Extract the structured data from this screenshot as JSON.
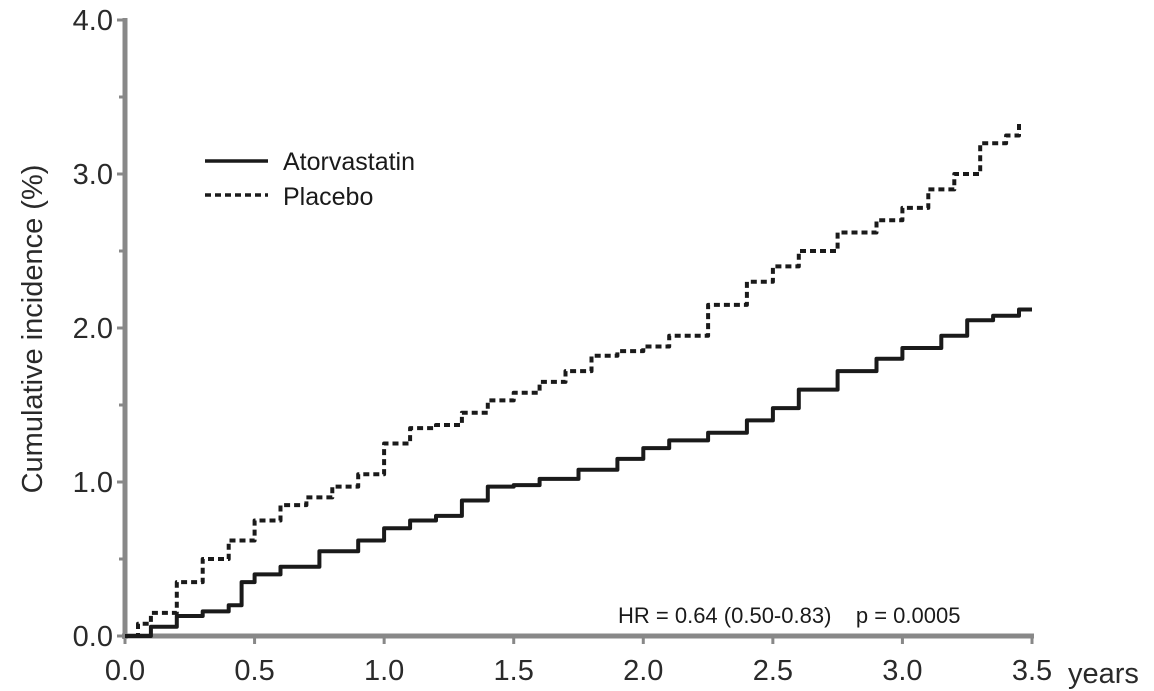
{
  "chart_data": {
    "type": "line",
    "title": "",
    "xlabel": "years",
    "ylabel": "Cumulative incidence (%)",
    "xlim": [
      0,
      3.5
    ],
    "ylim": [
      0,
      4.0
    ],
    "xticks": [
      {
        "value": 0.0,
        "label": "0.0"
      },
      {
        "value": 0.5,
        "label": "0.5"
      },
      {
        "value": 1.0,
        "label": "1.0"
      },
      {
        "value": 1.5,
        "label": "1.5"
      },
      {
        "value": 2.0,
        "label": "2.0"
      },
      {
        "value": 2.5,
        "label": "2.5"
      },
      {
        "value": 3.0,
        "label": "3.0"
      },
      {
        "value": 3.5,
        "label": "3.5"
      }
    ],
    "yticks": [
      {
        "value": 0.0,
        "label": "0.0"
      },
      {
        "value": 1.0,
        "label": "1.0"
      },
      {
        "value": 2.0,
        "label": "2.0"
      },
      {
        "value": 3.0,
        "label": "3.0"
      },
      {
        "value": 4.0,
        "label": "4.0"
      }
    ],
    "y_minor_ticks": [
      0.5,
      1.5,
      2.5,
      3.5
    ],
    "grid": false,
    "legend_position": "top-left",
    "annotation": "HR = 0.64 (0.50-0.83)    p = 0.0005",
    "series": [
      {
        "name": "Atorvastatin",
        "style": "solid",
        "color": "#1a1a1a",
        "x": [
          0,
          0.1,
          0.2,
          0.3,
          0.4,
          0.45,
          0.5,
          0.6,
          0.75,
          0.9,
          1.0,
          1.1,
          1.2,
          1.3,
          1.4,
          1.5,
          1.6,
          1.75,
          1.9,
          2.0,
          2.1,
          2.25,
          2.4,
          2.5,
          2.6,
          2.75,
          2.9,
          3.0,
          3.15,
          3.25,
          3.35,
          3.45,
          3.5
        ],
        "y": [
          0,
          0.06,
          0.13,
          0.16,
          0.2,
          0.35,
          0.4,
          0.45,
          0.55,
          0.62,
          0.7,
          0.75,
          0.78,
          0.88,
          0.97,
          0.98,
          1.02,
          1.08,
          1.15,
          1.22,
          1.27,
          1.32,
          1.4,
          1.48,
          1.6,
          1.72,
          1.8,
          1.87,
          1.95,
          2.05,
          2.08,
          2.12,
          2.12
        ]
      },
      {
        "name": "Placebo",
        "style": "dashed",
        "color": "#1a1a1a",
        "x": [
          0,
          0.05,
          0.1,
          0.2,
          0.3,
          0.4,
          0.5,
          0.6,
          0.7,
          0.8,
          0.9,
          1.0,
          1.1,
          1.2,
          1.3,
          1.4,
          1.5,
          1.6,
          1.7,
          1.8,
          1.9,
          2.0,
          2.1,
          2.25,
          2.4,
          2.5,
          2.6,
          2.75,
          2.9,
          3.0,
          3.1,
          3.2,
          3.3,
          3.4,
          3.45
        ],
        "y": [
          0,
          0.08,
          0.15,
          0.35,
          0.5,
          0.62,
          0.75,
          0.85,
          0.9,
          0.97,
          1.05,
          1.25,
          1.35,
          1.37,
          1.45,
          1.53,
          1.58,
          1.65,
          1.72,
          1.82,
          1.85,
          1.88,
          1.95,
          2.15,
          2.3,
          2.4,
          2.5,
          2.62,
          2.7,
          2.78,
          2.9,
          3.0,
          3.2,
          3.25,
          3.35
        ]
      }
    ]
  }
}
